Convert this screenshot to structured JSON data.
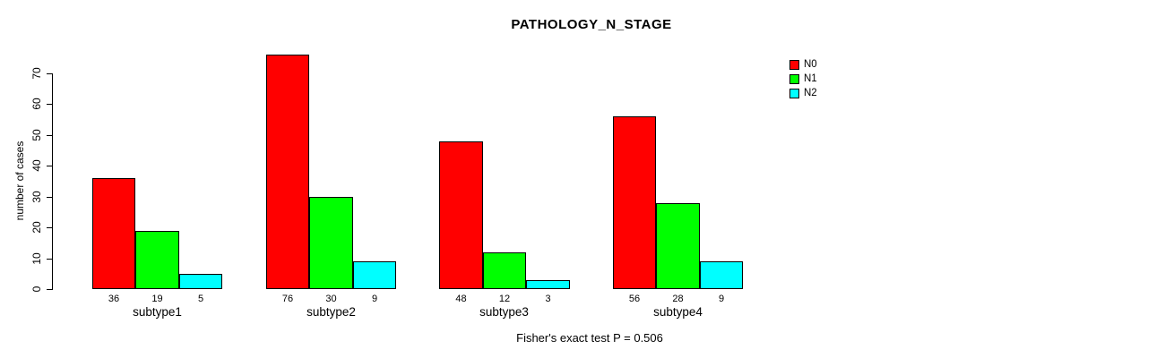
{
  "title": "PATHOLOGY_N_STAGE",
  "footer": "Fisher's exact test P = 0.506",
  "y_axis": {
    "label": "number of cases",
    "ticks": [
      0,
      10,
      20,
      30,
      40,
      50,
      60,
      70
    ]
  },
  "legend": {
    "position": "top-right",
    "items": [
      {
        "label": "N0",
        "color": "#FF0000"
      },
      {
        "label": "N1",
        "color": "#00FF00"
      },
      {
        "label": "N2",
        "color": "#00FFFF"
      }
    ]
  },
  "chart_data": {
    "type": "bar",
    "title": "PATHOLOGY_N_STAGE",
    "categories": [
      "subtype1",
      "subtype2",
      "subtype3",
      "subtype4"
    ],
    "series": [
      {
        "name": "N0",
        "color": "#FF0000",
        "values": [
          36,
          76,
          48,
          56
        ]
      },
      {
        "name": "N1",
        "color": "#00FF00",
        "values": [
          19,
          30,
          12,
          28
        ]
      },
      {
        "name": "N2",
        "color": "#00FFFF",
        "values": [
          5,
          9,
          3,
          9
        ]
      }
    ],
    "xlabel": "",
    "ylabel": "number of cases",
    "ylim": [
      0,
      70
    ],
    "yticks": [
      0,
      10,
      20,
      30,
      40,
      50,
      60,
      70
    ],
    "bar_value_labels_shown": true,
    "grid": false,
    "legend_position": "top-right",
    "annotation": "Fisher's exact test P = 0.506"
  }
}
